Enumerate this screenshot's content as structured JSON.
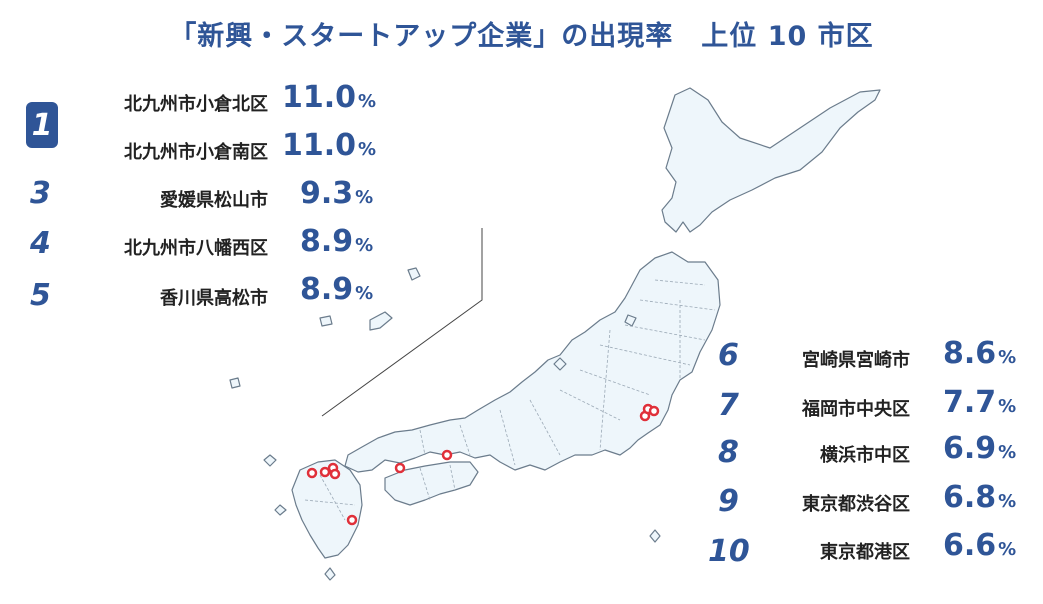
{
  "title": "「新興・スタートアップ企業」の出現率　上位 10 市区",
  "ranking": [
    {
      "rank": "1",
      "city": "北九州市小倉北区",
      "value": "11.0",
      "unit": "%"
    },
    {
      "rank": "1",
      "city": "北九州市小倉南区",
      "value": "11.0",
      "unit": "%"
    },
    {
      "rank": "3",
      "city": "愛媛県松山市",
      "value": "9.3",
      "unit": "%"
    },
    {
      "rank": "4",
      "city": "北九州市八幡西区",
      "value": "8.9",
      "unit": "%"
    },
    {
      "rank": "5",
      "city": "香川県高松市",
      "value": "8.9",
      "unit": "%"
    },
    {
      "rank": "6",
      "city": "宮崎県宮崎市",
      "value": "8.6",
      "unit": "%"
    },
    {
      "rank": "7",
      "city": "福岡市中央区",
      "value": "7.7",
      "unit": "%"
    },
    {
      "rank": "8",
      "city": "横浜市中区",
      "value": "6.9",
      "unit": "%"
    },
    {
      "rank": "9",
      "city": "東京都渋谷区",
      "value": "6.8",
      "unit": "%"
    },
    {
      "rank": "10",
      "city": "東京都港区",
      "value": "6.6",
      "unit": "%"
    }
  ],
  "colors": {
    "accent": "#2f5597",
    "map_fill": "#eef6fb",
    "map_stroke": "#6b7c8c",
    "marker": "#e0303a"
  }
}
